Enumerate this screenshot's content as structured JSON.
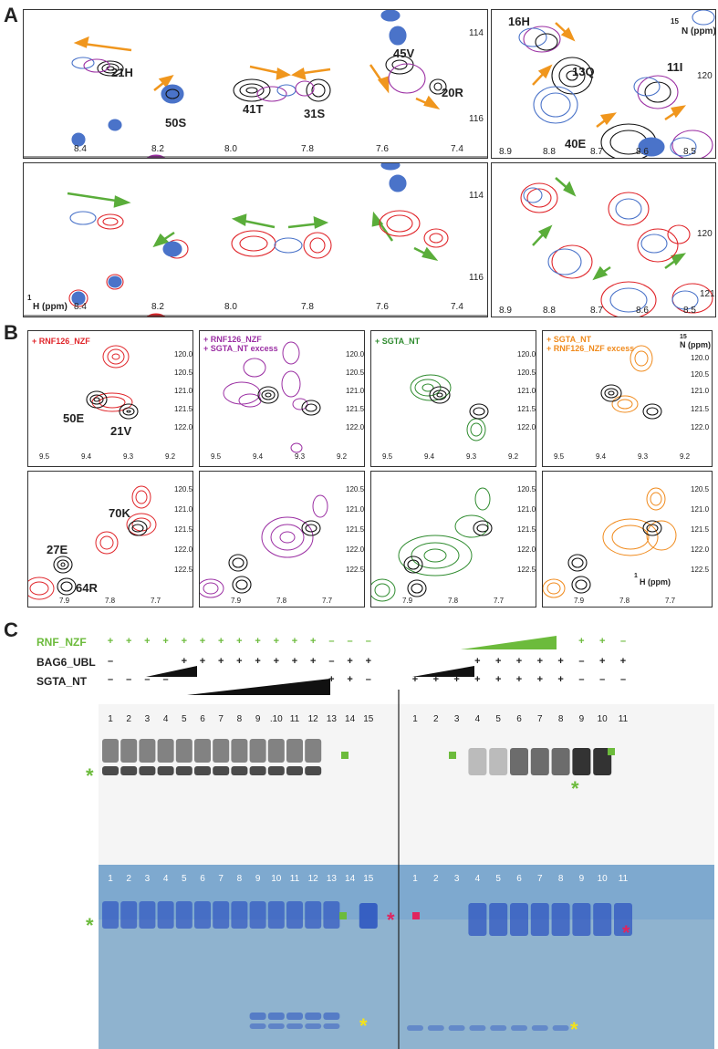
{
  "panel_labels": {
    "a": "A",
    "b": "B",
    "c": "C"
  },
  "panel_a": {
    "left_axis_x_ticks": [
      "8.4",
      "8.2",
      "8.0",
      "7.8",
      "7.6",
      "7.4"
    ],
    "left_axis_y_ticks": [
      "114",
      "116"
    ],
    "right_axis_x_ticks": [
      "8.9",
      "8.8",
      "8.7",
      "8.6",
      "8.5"
    ],
    "right_axis_y_ticks": [
      "120"
    ],
    "n15_label_sup": "15",
    "n15_label": "N (ppm)",
    "h1_label_sup": "1",
    "h1_label": "H (ppm)",
    "peak_labels_left": [
      "21H",
      "50S",
      "41T",
      "31S",
      "45V",
      "20R"
    ],
    "peak_labels_right": [
      "16H",
      "13Q",
      "11I",
      "40E"
    ],
    "right_partial_tick": "121"
  },
  "panel_b": {
    "legends": [
      {
        "line1": "+ RNF126_NZF",
        "line2": "",
        "color": "#e0252a"
      },
      {
        "line1": "+ RNF126_NZF",
        "line2": "+ SGTA_NT excess",
        "color": "#9b2fa3"
      },
      {
        "line1": "+ SGTA_NT",
        "line2": "",
        "color": "#2e8b2e"
      },
      {
        "line1": "+ SGTA_NT",
        "line2": "+ RNF126_NZF excess",
        "color": "#f08a1c"
      }
    ],
    "top_x_ticks": [
      "9.5",
      "9.4",
      "9.3",
      "9.2"
    ],
    "top_y_ticks": [
      "120.0",
      "120.5",
      "121.0",
      "121.5",
      "122.0"
    ],
    "bottom_x_ticks": [
      "7.9",
      "7.8",
      "7.7"
    ],
    "bottom_y_ticks": [
      "120.5",
      "121.0",
      "121.5",
      "122.0",
      "122.5"
    ],
    "top_peak_labels": [
      "50E",
      "21V"
    ],
    "bottom_peak_labels": [
      "70K",
      "27E",
      "64R"
    ],
    "n15_sup": "15",
    "n15": "N (ppm)",
    "h1_sup": "1",
    "h1": "H (ppm)"
  },
  "panel_c": {
    "row_labels": {
      "rnf": "RNF_NZF",
      "bag6": "BAG6_UBL",
      "sgta": "SGTA_NT"
    },
    "left_rows": {
      "rnf": [
        "+",
        "+",
        "+",
        "+",
        "+",
        "+",
        "+",
        "+",
        "+",
        "+",
        "+",
        "+",
        "–",
        "–",
        "–"
      ],
      "bag6": [
        "–",
        "",
        "",
        "",
        "+",
        "+",
        "+",
        "+",
        "+",
        "+",
        "+",
        "+",
        "–",
        "+",
        "+"
      ],
      "sgta": [
        "–",
        "–",
        "–",
        "–",
        "",
        "",
        "",
        "",
        "",
        "",
        "",
        "",
        "+",
        "+",
        "–"
      ]
    },
    "right_rows": {
      "rnf": [
        "",
        "",
        "",
        "",
        "",
        "",
        "",
        "",
        "+",
        "+",
        "–"
      ],
      "bag6": [
        "",
        "",
        "",
        "+",
        "+",
        "+",
        "+",
        "+",
        "–",
        "+",
        "+"
      ],
      "sgta": [
        "+",
        "+",
        "+",
        "+",
        "+",
        "+",
        "+",
        "+",
        "–",
        "–",
        "–"
      ]
    },
    "left_lanes": [
      "1",
      "2",
      "3",
      "4",
      "5",
      "6",
      "7",
      "8",
      "9",
      ".10",
      "11",
      "12",
      "13",
      "14",
      "15"
    ],
    "left_lanes_blue": [
      "1",
      "2",
      "3",
      "4",
      "5",
      "6",
      "7",
      "8",
      "9",
      "10",
      "11",
      "12",
      "13",
      "14",
      "15"
    ],
    "right_lanes": [
      "1",
      "2",
      "3",
      "4",
      "5",
      "6",
      "7",
      "8",
      "9",
      "10",
      "11"
    ],
    "asterisk": "*",
    "colors": {
      "green": "#6cbb3c",
      "red": "#e0245e",
      "yellow": "#f4e21a"
    }
  }
}
